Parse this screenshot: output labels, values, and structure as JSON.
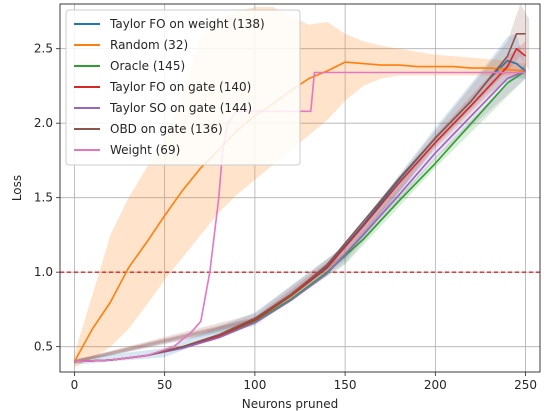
{
  "chart_data": {
    "type": "line",
    "xlabel": "Neurons pruned",
    "ylabel": "Loss",
    "xlim": [
      -8,
      258
    ],
    "ylim": [
      0.33,
      2.8
    ],
    "xticks": [
      0,
      50,
      100,
      150,
      200,
      250
    ],
    "yticks": [
      0.5,
      1.0,
      1.5,
      2.0,
      2.5
    ],
    "xtick_labels": [
      "0",
      "50",
      "100",
      "150",
      "200",
      "250"
    ],
    "ytick_labels": [
      "0.5",
      "1.0",
      "1.5",
      "2.0",
      "2.5"
    ],
    "grid": true,
    "legend_position": "top-left",
    "reference_line": {
      "y": 1.0,
      "color": "#d62728",
      "style": "dashed"
    },
    "series": [
      {
        "name": "Taylor FO on weight (138)",
        "color": "#1f77b4",
        "x": [
          0,
          20,
          40,
          60,
          80,
          100,
          120,
          140,
          160,
          180,
          200,
          220,
          230,
          240,
          245,
          250
        ],
        "y": [
          0.4,
          0.41,
          0.44,
          0.5,
          0.58,
          0.69,
          0.85,
          1.04,
          1.32,
          1.62,
          1.9,
          2.15,
          2.3,
          2.42,
          2.4,
          2.35
        ],
        "band": {
          "x": [
            0,
            50,
            100,
            150,
            200,
            230,
            240,
            245,
            250
          ],
          "lower": [
            0.38,
            0.43,
            0.66,
            1.08,
            1.84,
            2.2,
            2.28,
            2.3,
            2.3
          ],
          "upper": [
            0.42,
            0.49,
            0.73,
            1.18,
            1.97,
            2.42,
            2.58,
            2.6,
            2.38
          ]
        }
      },
      {
        "name": "Random (32)",
        "color": "#ff7f0e",
        "x": [
          0,
          10,
          20,
          30,
          40,
          50,
          60,
          70,
          80,
          90,
          100,
          110,
          120,
          130,
          140,
          150,
          160,
          170,
          180,
          190,
          200,
          210,
          220,
          230,
          240,
          250
        ],
        "y": [
          0.4,
          0.62,
          0.8,
          1.03,
          1.2,
          1.38,
          1.55,
          1.7,
          1.82,
          1.95,
          2.05,
          2.13,
          2.22,
          2.3,
          2.35,
          2.41,
          2.4,
          2.39,
          2.39,
          2.38,
          2.38,
          2.38,
          2.37,
          2.37,
          2.36,
          2.35
        ],
        "band": {
          "x": [
            0,
            10,
            20,
            30,
            40,
            50,
            60,
            70,
            80,
            90,
            100,
            110,
            120,
            130,
            140,
            150,
            160,
            170,
            180,
            190,
            200,
            210,
            220,
            230,
            240,
            250
          ],
          "lower": [
            0.36,
            0.42,
            0.5,
            0.62,
            0.78,
            0.95,
            1.1,
            1.25,
            1.4,
            1.52,
            1.62,
            1.72,
            1.82,
            1.92,
            2.02,
            2.15,
            2.25,
            2.3,
            2.32,
            2.32,
            2.32,
            2.32,
            2.32,
            2.32,
            2.32,
            2.32
          ],
          "upper": [
            0.45,
            0.85,
            1.25,
            1.5,
            1.7,
            1.9,
            2.2,
            2.58,
            2.7,
            2.75,
            2.78,
            2.78,
            2.72,
            2.66,
            2.68,
            2.6,
            2.55,
            2.52,
            2.5,
            2.48,
            2.46,
            2.45,
            2.44,
            2.43,
            2.42,
            2.4
          ]
        }
      },
      {
        "name": "Oracle (145)",
        "color": "#2ca02c",
        "x": [
          0,
          20,
          40,
          60,
          80,
          100,
          120,
          140,
          160,
          180,
          200,
          220,
          240,
          250
        ],
        "y": [
          0.4,
          0.41,
          0.44,
          0.5,
          0.57,
          0.67,
          0.82,
          1.0,
          1.22,
          1.48,
          1.73,
          2.0,
          2.27,
          2.35
        ],
        "band": {
          "x": [
            0,
            100,
            150,
            200,
            250
          ],
          "lower": [
            0.39,
            0.65,
            1.05,
            1.7,
            2.3
          ],
          "upper": [
            0.41,
            0.69,
            1.13,
            1.77,
            2.4
          ]
        }
      },
      {
        "name": "Taylor FO on gate (140)",
        "color": "#d62728",
        "x": [
          0,
          20,
          40,
          60,
          80,
          100,
          120,
          140,
          160,
          180,
          200,
          220,
          240,
          245,
          250
        ],
        "y": [
          0.4,
          0.41,
          0.44,
          0.5,
          0.57,
          0.68,
          0.84,
          1.03,
          1.31,
          1.6,
          1.87,
          2.12,
          2.38,
          2.5,
          2.45
        ],
        "band": {
          "x": [
            0,
            100,
            150,
            200,
            240,
            250
          ],
          "lower": [
            0.39,
            0.66,
            1.1,
            1.83,
            2.3,
            2.35
          ],
          "upper": [
            0.41,
            0.7,
            1.16,
            1.92,
            2.45,
            2.55
          ]
        }
      },
      {
        "name": "Taylor SO on gate (144)",
        "color": "#9467bd",
        "x": [
          0,
          20,
          40,
          60,
          80,
          100,
          120,
          140,
          160,
          180,
          200,
          220,
          240,
          250
        ],
        "y": [
          0.4,
          0.41,
          0.44,
          0.49,
          0.56,
          0.66,
          0.81,
          0.99,
          1.25,
          1.52,
          1.8,
          2.05,
          2.3,
          2.35
        ],
        "band": {
          "x": [
            0,
            100,
            150,
            200,
            250
          ],
          "lower": [
            0.39,
            0.64,
            1.06,
            1.76,
            2.3
          ],
          "upper": [
            0.41,
            0.69,
            1.13,
            1.84,
            2.4
          ]
        }
      },
      {
        "name": "OBD on gate (136)",
        "color": "#8c564b",
        "x": [
          0,
          20,
          40,
          60,
          80,
          100,
          120,
          140,
          160,
          180,
          200,
          220,
          240,
          245,
          250
        ],
        "y": [
          0.4,
          0.41,
          0.44,
          0.5,
          0.58,
          0.69,
          0.85,
          1.05,
          1.34,
          1.63,
          1.9,
          2.15,
          2.45,
          2.6,
          2.6
        ],
        "band": {
          "x": [
            0,
            100,
            150,
            200,
            240,
            247,
            252
          ],
          "lower": [
            0.39,
            0.67,
            1.1,
            1.85,
            2.35,
            2.45,
            2.35
          ],
          "upper": [
            0.41,
            0.72,
            1.18,
            1.95,
            2.55,
            2.8,
            2.7
          ]
        }
      },
      {
        "name": "Weight (69)",
        "color": "#e377c2",
        "x": [
          0,
          20,
          40,
          55,
          60,
          65,
          70,
          75,
          80,
          82,
          85,
          90,
          100,
          110,
          120,
          128,
          131,
          133,
          140,
          150,
          200,
          250
        ],
        "y": [
          0.4,
          0.41,
          0.44,
          0.5,
          0.55,
          0.6,
          0.67,
          1.0,
          1.5,
          1.8,
          2.0,
          2.08,
          2.08,
          2.08,
          2.08,
          2.08,
          2.08,
          2.34,
          2.34,
          2.34,
          2.34,
          2.34
        ]
      }
    ]
  }
}
